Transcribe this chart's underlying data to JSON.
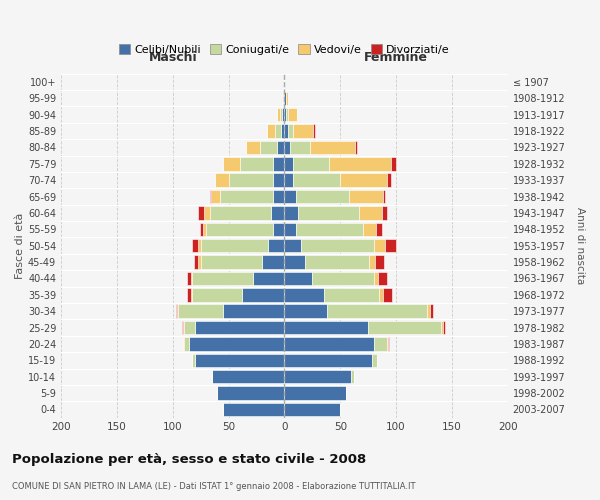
{
  "age_groups": [
    "0-4",
    "5-9",
    "10-14",
    "15-19",
    "20-24",
    "25-29",
    "30-34",
    "35-39",
    "40-44",
    "45-49",
    "50-54",
    "55-59",
    "60-64",
    "65-69",
    "70-74",
    "75-79",
    "80-84",
    "85-89",
    "90-94",
    "95-99",
    "100+"
  ],
  "birth_years": [
    "2003-2007",
    "1998-2002",
    "1993-1997",
    "1988-1992",
    "1983-1987",
    "1978-1982",
    "1973-1977",
    "1968-1972",
    "1963-1967",
    "1958-1962",
    "1953-1957",
    "1948-1952",
    "1943-1947",
    "1938-1942",
    "1933-1937",
    "1928-1932",
    "1923-1927",
    "1918-1922",
    "1913-1917",
    "1908-1912",
    "≤ 1907"
  ],
  "maschi": {
    "celibi": [
      55,
      60,
      65,
      80,
      85,
      80,
      55,
      38,
      28,
      20,
      15,
      10,
      12,
      10,
      10,
      10,
      7,
      3,
      2,
      1,
      0
    ],
    "coniugati": [
      0,
      0,
      0,
      3,
      5,
      10,
      40,
      45,
      55,
      55,
      60,
      60,
      55,
      48,
      40,
      30,
      15,
      5,
      2,
      0,
      0
    ],
    "vedovi": [
      0,
      0,
      0,
      0,
      1,
      1,
      1,
      1,
      1,
      2,
      2,
      3,
      5,
      8,
      12,
      15,
      12,
      8,
      3,
      1,
      0
    ],
    "divorziati": [
      0,
      0,
      0,
      0,
      0,
      1,
      1,
      3,
      3,
      4,
      6,
      3,
      5,
      1,
      0,
      0,
      0,
      0,
      0,
      0,
      0
    ]
  },
  "femmine": {
    "nubili": [
      50,
      55,
      60,
      78,
      80,
      75,
      38,
      35,
      25,
      18,
      15,
      10,
      12,
      10,
      8,
      8,
      5,
      3,
      1,
      1,
      0
    ],
    "coniugate": [
      0,
      0,
      2,
      5,
      12,
      65,
      90,
      50,
      55,
      58,
      65,
      60,
      55,
      48,
      42,
      32,
      18,
      5,
      2,
      0,
      0
    ],
    "vedove": [
      0,
      0,
      0,
      0,
      1,
      2,
      2,
      3,
      4,
      5,
      10,
      12,
      20,
      30,
      42,
      55,
      40,
      18,
      8,
      2,
      0
    ],
    "divorziate": [
      0,
      0,
      0,
      0,
      1,
      2,
      3,
      8,
      8,
      8,
      10,
      5,
      5,
      2,
      3,
      5,
      2,
      1,
      0,
      0,
      0
    ]
  },
  "color_celibi": "#4472a8",
  "color_coniugati": "#c5d8a0",
  "color_vedovi": "#f5c96e",
  "color_divorziati": "#cc2222",
  "xlim": 200,
  "title": "Popolazione per età, sesso e stato civile - 2008",
  "subtitle": "COMUNE DI SAN PIETRO IN LAMA (LE) - Dati ISTAT 1° gennaio 2008 - Elaborazione TUTTITALIA.IT",
  "ylabel_left": "Fasce di età",
  "ylabel_right": "Anni di nascita",
  "xlabel_left": "Maschi",
  "xlabel_right": "Femmine",
  "bg_color": "#f5f5f5"
}
